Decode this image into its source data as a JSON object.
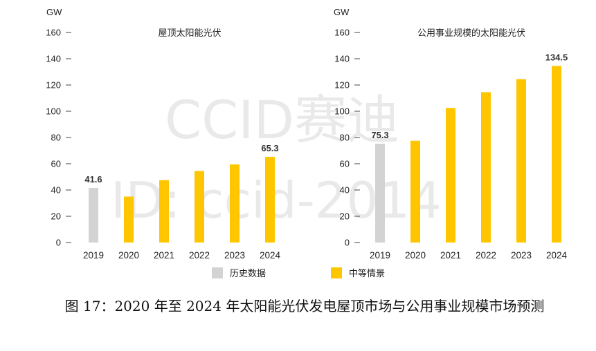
{
  "watermark": {
    "line1": "CCID赛迪",
    "line2": "ID: ccid-2014"
  },
  "legend": [
    {
      "label": "历史数据",
      "color": "#d3d3d3"
    },
    {
      "label": "中等情景",
      "color": "#ffc600"
    }
  ],
  "caption": "图 17：2020 年至 2024 年太阳能光伏发电屋顶市场与公用事业规模市场预测",
  "chart_data": [
    {
      "type": "bar",
      "title": "屋顶太阳能光伏",
      "ylabel": "GW",
      "ylim": [
        0,
        160
      ],
      "yticks": [
        0,
        20,
        40,
        60,
        80,
        100,
        120,
        140,
        160
      ],
      "categories": [
        "2019",
        "2020",
        "2021",
        "2022",
        "2023",
        "2024"
      ],
      "values": [
        41.6,
        35,
        47.5,
        54.5,
        59.5,
        65.3
      ],
      "bar_colors": [
        "#d3d3d3",
        "#ffc600",
        "#ffc600",
        "#ffc600",
        "#ffc600",
        "#ffc600"
      ],
      "data_labels": {
        "0": "41.6",
        "5": "65.3"
      }
    },
    {
      "type": "bar",
      "title": "公用事业规模的太阳能光伏",
      "ylabel": "GW",
      "ylim": [
        0,
        160
      ],
      "yticks": [
        0,
        20,
        40,
        60,
        80,
        100,
        120,
        140,
        160
      ],
      "categories": [
        "2019",
        "2020",
        "2021",
        "2022",
        "2023",
        "2024"
      ],
      "values": [
        75.3,
        77.5,
        102.5,
        114.5,
        124.5,
        134.5
      ],
      "bar_colors": [
        "#d3d3d3",
        "#ffc600",
        "#ffc600",
        "#ffc600",
        "#ffc600",
        "#ffc600"
      ],
      "data_labels": {
        "0": "75.3",
        "5": "134.5"
      }
    }
  ]
}
